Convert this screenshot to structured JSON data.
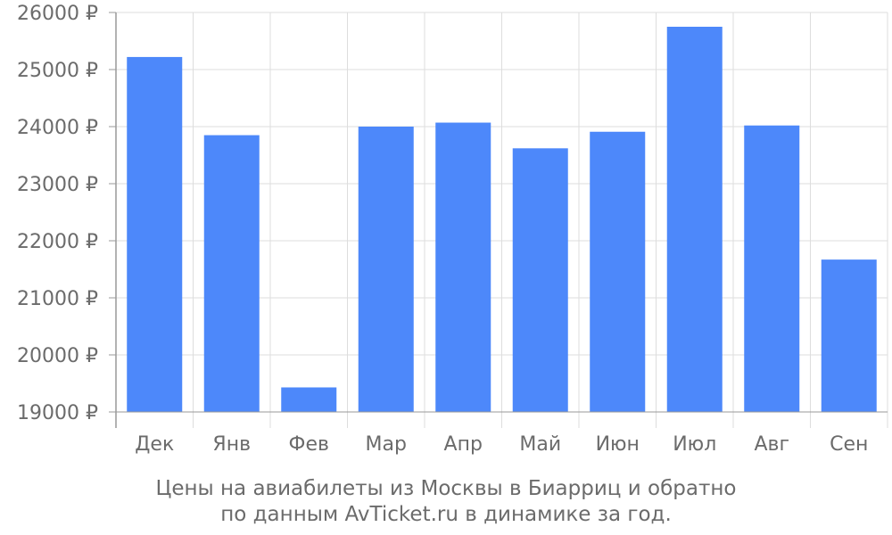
{
  "chart_data": {
    "type": "bar",
    "categories": [
      "Дек",
      "Янв",
      "Фев",
      "Мар",
      "Апр",
      "Май",
      "Июн",
      "Июл",
      "Авг",
      "Сен"
    ],
    "values": [
      25220,
      23850,
      19430,
      24000,
      24070,
      23620,
      23910,
      25750,
      24020,
      21670
    ],
    "ylim": [
      19000,
      26000
    ],
    "yticks": [
      19000,
      20000,
      21000,
      22000,
      23000,
      24000,
      25000,
      26000
    ],
    "ytick_labels": [
      "19000 ₽",
      "20000 ₽",
      "21000 ₽",
      "22000 ₽",
      "23000 ₽",
      "24000 ₽",
      "25000 ₽",
      "26000 ₽"
    ],
    "grid": true,
    "colors": {
      "bar": "#4d88fa",
      "grid": "#dddddd",
      "axis": "#999999",
      "text": "#6b6b6b"
    }
  },
  "caption": {
    "line1": "Цены на авиабилеты из Москвы в Биарриц и обратно",
    "line2": "по данным AvTicket.ru в динамике за год."
  }
}
